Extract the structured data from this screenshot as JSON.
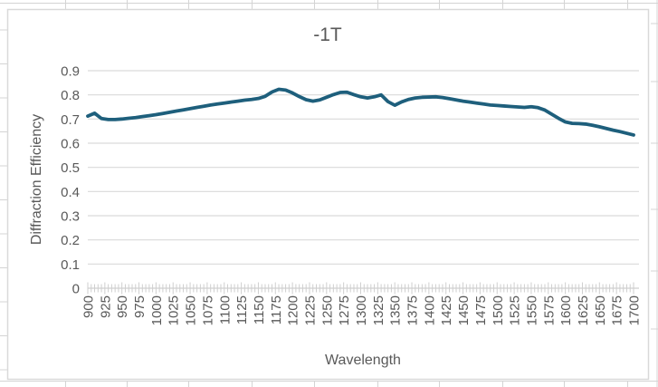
{
  "sheet": {
    "background": "#ffffff",
    "gridline_color": "#d4d4d4"
  },
  "chart": {
    "border_color": "#d9d9d9",
    "background": "#ffffff",
    "title_color": "#595959",
    "text_color": "#595959",
    "gridline_color": "#d9d9d9",
    "axis_line_color": "#cfcfcf",
    "series_color": "#1e5f7c"
  },
  "chart_data": {
    "type": "line",
    "title": "-1T",
    "xlabel": "Wavelength",
    "ylabel": "Diffraction Efficiency",
    "legend": "none",
    "grid": "horizontal",
    "ylim": [
      0,
      0.9
    ],
    "y_ticks": [
      0,
      0.1,
      0.2,
      0.3,
      0.4,
      0.5,
      0.6,
      0.7,
      0.8,
      0.9
    ],
    "y_tick_labels": [
      "0",
      "0.1",
      "0.2",
      "0.3",
      "0.4",
      "0.5",
      "0.6",
      "0.7",
      "0.8",
      "0.9"
    ],
    "x_label_start": 900,
    "x_label_end": 1700,
    "x_label_step": 25,
    "x_minor_tick_step": 5,
    "series": [
      {
        "name": "-1T",
        "color": "#1e5f7c",
        "x_start": 900,
        "x_step": 10,
        "values": [
          0.712,
          0.724,
          0.702,
          0.698,
          0.698,
          0.7,
          0.703,
          0.706,
          0.71,
          0.714,
          0.718,
          0.723,
          0.728,
          0.733,
          0.738,
          0.743,
          0.748,
          0.753,
          0.758,
          0.762,
          0.766,
          0.77,
          0.774,
          0.778,
          0.781,
          0.785,
          0.794,
          0.812,
          0.823,
          0.82,
          0.808,
          0.793,
          0.78,
          0.774,
          0.779,
          0.79,
          0.801,
          0.81,
          0.811,
          0.801,
          0.792,
          0.787,
          0.792,
          0.8,
          0.772,
          0.757,
          0.771,
          0.781,
          0.787,
          0.79,
          0.791,
          0.792,
          0.789,
          0.784,
          0.779,
          0.774,
          0.77,
          0.766,
          0.762,
          0.758,
          0.756,
          0.754,
          0.752,
          0.75,
          0.748,
          0.751,
          0.747,
          0.737,
          0.72,
          0.703,
          0.688,
          0.682,
          0.681,
          0.679,
          0.674,
          0.668,
          0.661,
          0.654,
          0.648,
          0.641,
          0.634
        ]
      }
    ]
  }
}
